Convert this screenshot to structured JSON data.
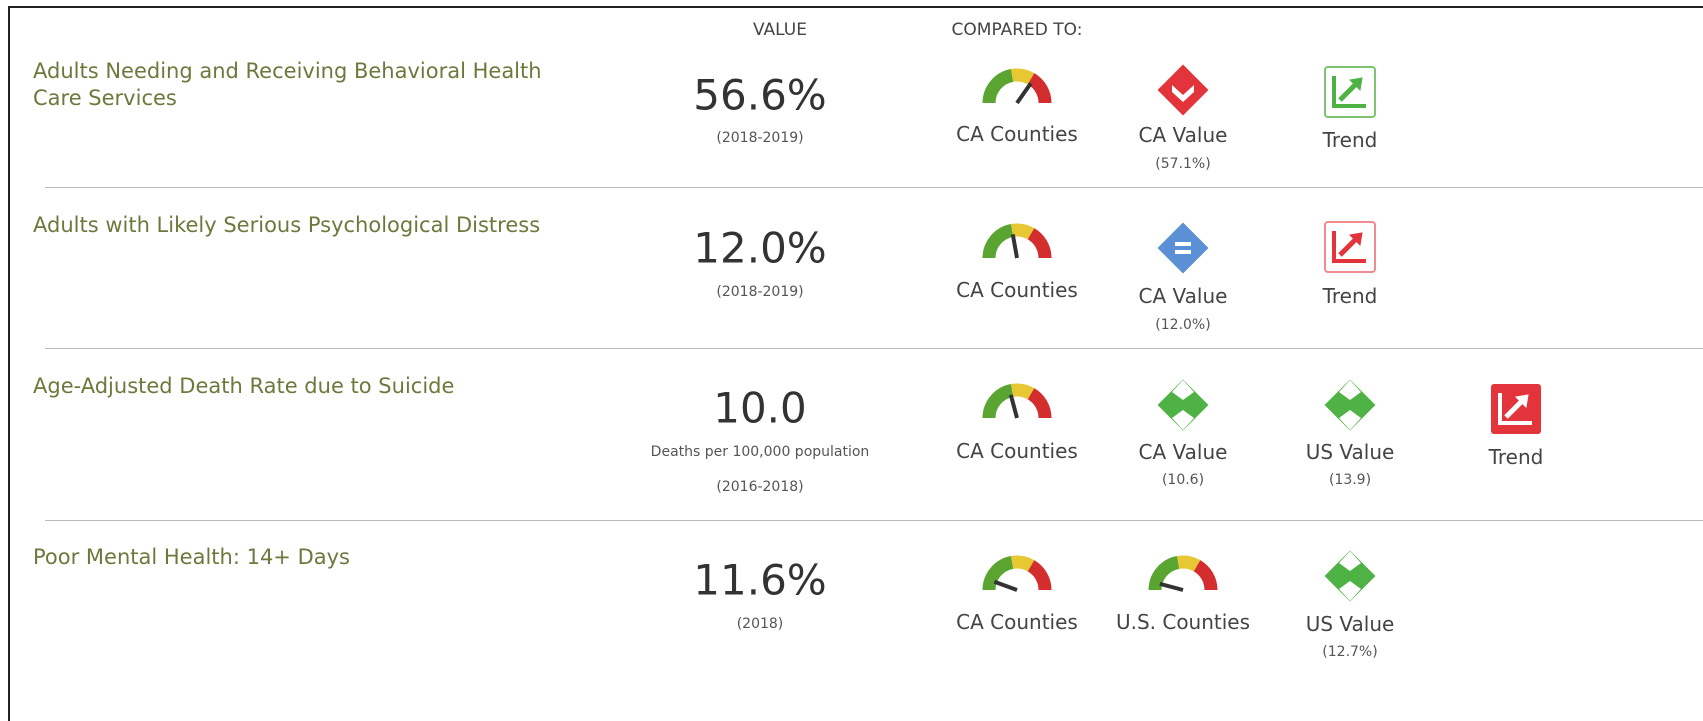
{
  "header": {
    "value_label": "VALUE",
    "compared_label": "COMPARED TO:"
  },
  "rows": [
    {
      "title": "Adults Needing and Receiving Behavioral Health Care Services",
      "value": "56.6%",
      "period": "(2018-2019)",
      "comparisons": [
        {
          "label": "CA Counties"
        },
        {
          "label": "CA Value",
          "sub": "(57.1%)"
        },
        {
          "label": "Trend"
        }
      ]
    },
    {
      "title": "Adults with Likely Serious Psychological Distress",
      "value": "12.0%",
      "period": "(2018-2019)",
      "comparisons": [
        {
          "label": "CA Counties"
        },
        {
          "label": "CA Value",
          "sub": "(12.0%)"
        },
        {
          "label": "Trend"
        }
      ]
    },
    {
      "title": "Age-Adjusted Death Rate due to Suicide",
      "value": "10.0",
      "unit": "Deaths per 100,000 population",
      "period": "(2016-2018)",
      "comparisons": [
        {
          "label": "CA Counties"
        },
        {
          "label": "CA Value",
          "sub": "(10.6)"
        },
        {
          "label": "US Value",
          "sub": "(13.9)"
        },
        {
          "label": "Trend"
        }
      ]
    },
    {
      "title": "Poor Mental Health: 14+ Days",
      "value": "11.6%",
      "period": "(2018)",
      "comparisons": [
        {
          "label": "CA Counties"
        },
        {
          "label": "U.S. Counties"
        },
        {
          "label": "US Value",
          "sub": "(12.7%)"
        }
      ]
    }
  ]
}
